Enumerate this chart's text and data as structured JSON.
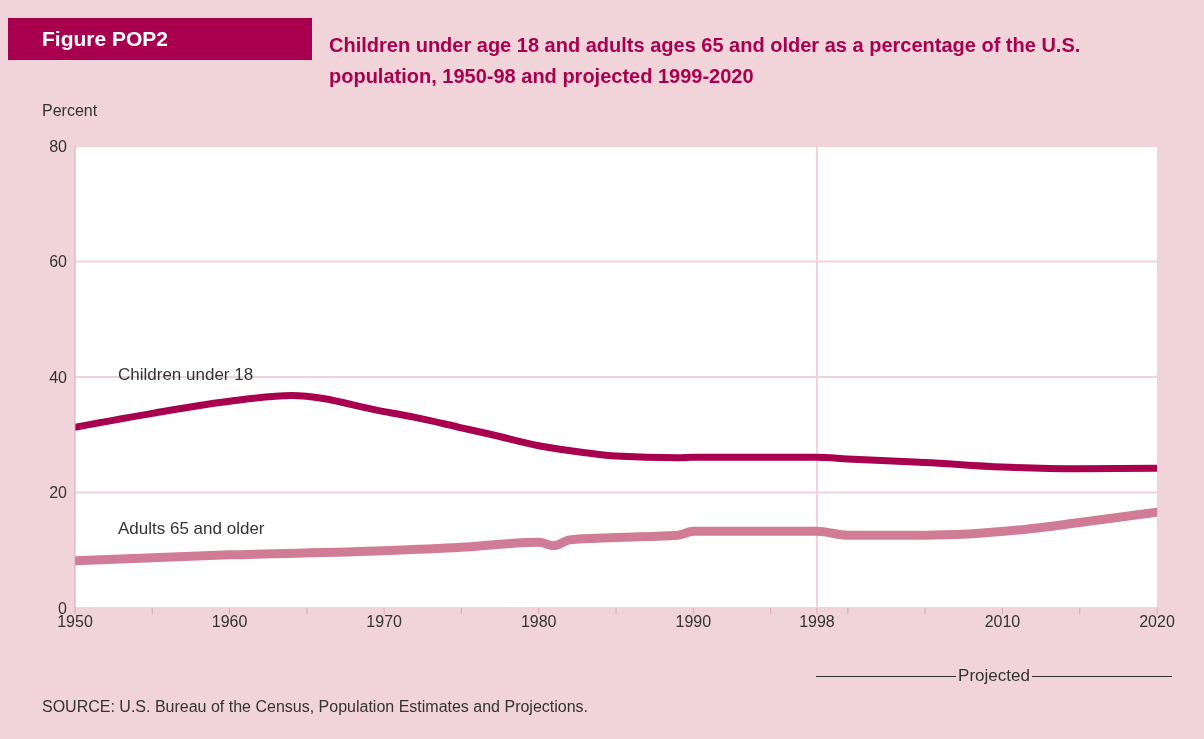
{
  "chart_data": {
    "type": "line",
    "title": "Children under age 18 and adults ages 65 and older as a percentage of the U.S. population, 1950-98 and projected 1999-2020",
    "ylabel": "Percent",
    "x": [
      1950,
      1955,
      1960,
      1964,
      1970,
      1972,
      1975,
      1977,
      1980,
      1983,
      1985,
      1989,
      1990,
      1998,
      2000,
      2005,
      2010,
      2015,
      2020
    ],
    "series": [
      {
        "name": "Children under 18",
        "color": "#a8004f",
        "values": [
          31.3,
          33.7,
          35.8,
          36.8,
          34,
          33,
          31.2,
          30,
          28.1,
          26.9,
          26.3,
          26,
          26.1,
          26.1,
          25.8,
          25.2,
          24.4,
          24.1,
          24.2
        ]
      },
      {
        "name": "Adults 65 and older",
        "color": "#d07c96",
        "x": [
          1950,
          1960,
          1970,
          1975,
          1980,
          1981,
          1982,
          1985,
          1989,
          1990,
          1998,
          2000,
          2005,
          2011,
          2015,
          2020
        ],
        "values": [
          8.2,
          9.2,
          9.9,
          10.5,
          11.4,
          10.8,
          11.8,
          12.2,
          12.6,
          13.3,
          13.3,
          12.6,
          12.6,
          13.5,
          14.8,
          16.6
        ]
      }
    ],
    "xlim": [
      1950,
      2020
    ],
    "xticks": [
      1950,
      {
        "value": 1955,
        "label": null
      },
      1960,
      {
        "value": 1965,
        "label": null
      },
      1970,
      {
        "value": 1975,
        "label": null
      },
      1980,
      {
        "value": 1985,
        "label": null
      },
      1990,
      {
        "value": 1995,
        "label": null
      },
      1998,
      {
        "value": 2000,
        "label": null
      },
      {
        "value": 2005,
        "label": null
      },
      2010,
      {
        "value": 2015,
        "label": null
      },
      2020
    ],
    "ylim": [
      0,
      80
    ],
    "yticks": [
      0,
      20,
      40,
      60,
      80
    ],
    "grid": "y",
    "legend": false,
    "marker": "none",
    "line_style": "solid",
    "ref_lines": [
      {
        "axis": "x",
        "value": 1998,
        "color": "#efd3d9"
      }
    ],
    "annotations": [
      "Figure POP2",
      "Projected",
      "SOURCE: U.S. Bureau of the Census, Population Estimates and Projections."
    ]
  }
}
